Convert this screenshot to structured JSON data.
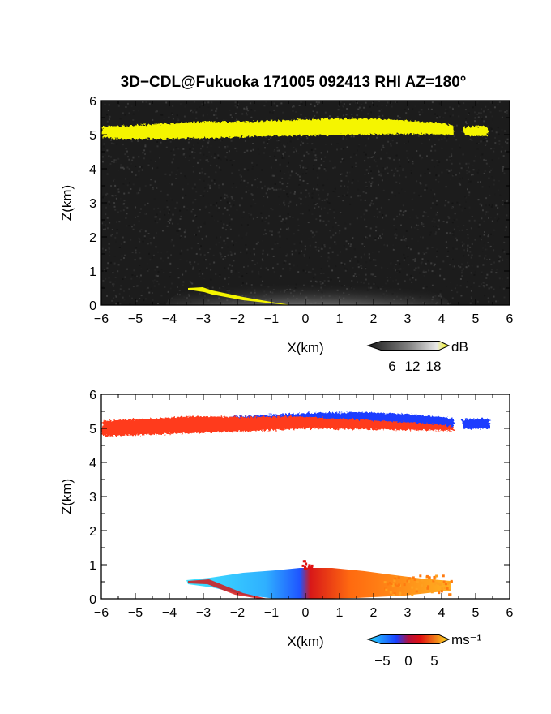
{
  "title": "3D−CDL@Fukuoka 171005 092413 RHI AZ=180°",
  "chart_data": [
    {
      "id": "reflectivity",
      "type": "heatmap",
      "xlabel": "X(km)",
      "ylabel": "Z(km)",
      "xlim": [
        -6,
        6
      ],
      "ylim": [
        0,
        6
      ],
      "xticks": [
        "−6",
        "−5",
        "−4",
        "−3",
        "−2",
        "−1",
        "0",
        "1",
        "2",
        "3",
        "4",
        "5",
        "6"
      ],
      "yticks": [
        "0",
        "1",
        "2",
        "3",
        "4",
        "5",
        "6"
      ],
      "background_color": "#1c1c1c",
      "features": [
        {
          "name": "cloud-layer",
          "color": "#f5f500",
          "x_range": [
            -6,
            4.3
          ],
          "z_range": [
            4.85,
            5.35
          ]
        },
        {
          "name": "cloud-layer-fragment",
          "color": "#f5f500",
          "x_range": [
            4.6,
            5.4
          ],
          "z_range": [
            4.95,
            5.25
          ]
        },
        {
          "name": "near-ground-echo",
          "color": "#a0a0a0",
          "x_range": [
            -3.4,
            4.5
          ],
          "z_range": [
            0,
            0.8
          ]
        },
        {
          "name": "ground-streak",
          "color": "#f5f500",
          "x_range": [
            -3.5,
            -0.8
          ],
          "z_range": [
            0.05,
            0.5
          ]
        }
      ],
      "colorbar": {
        "unit": "dB",
        "ticks": [
          "6",
          "12",
          "18"
        ],
        "colors": [
          "#202020",
          "#808080",
          "#e0e0e0",
          "#f5f500"
        ]
      }
    },
    {
      "id": "doppler-velocity",
      "type": "heatmap",
      "xlabel": "X(km)",
      "ylabel": "Z(km)",
      "xlim": [
        -6,
        6
      ],
      "ylim": [
        0,
        6
      ],
      "xticks": [
        "−6",
        "−5",
        "−4",
        "−3",
        "−2",
        "−1",
        "0",
        "1",
        "2",
        "3",
        "4",
        "5",
        "6"
      ],
      "yticks": [
        "0",
        "1",
        "2",
        "3",
        "4",
        "5",
        "6"
      ],
      "background_color": "#ffffff",
      "features": [
        {
          "name": "cloud-layer-receding",
          "color": "#ff3a1a",
          "x_range": [
            -6,
            4.3
          ],
          "z_range": [
            4.8,
            5.3
          ]
        },
        {
          "name": "cloud-layer-approaching",
          "color": "#1a3cff",
          "x_range": [
            -3,
            5.4
          ],
          "z_range": [
            5.05,
            5.5
          ]
        },
        {
          "name": "low-echo-negative",
          "color": "#29b6f6",
          "x_range": [
            -3.5,
            0
          ],
          "z_range": [
            0,
            0.9
          ]
        },
        {
          "name": "low-echo-positive",
          "color": "#ff9a10",
          "x_range": [
            0,
            4.3
          ],
          "z_range": [
            0,
            0.9
          ]
        }
      ],
      "colorbar": {
        "unit": "ms⁻¹",
        "ticks": [
          "−5",
          "0",
          "5"
        ],
        "colors": [
          "#27e0ff",
          "#1a40ff",
          "#e01010",
          "#ffe020"
        ]
      }
    }
  ]
}
